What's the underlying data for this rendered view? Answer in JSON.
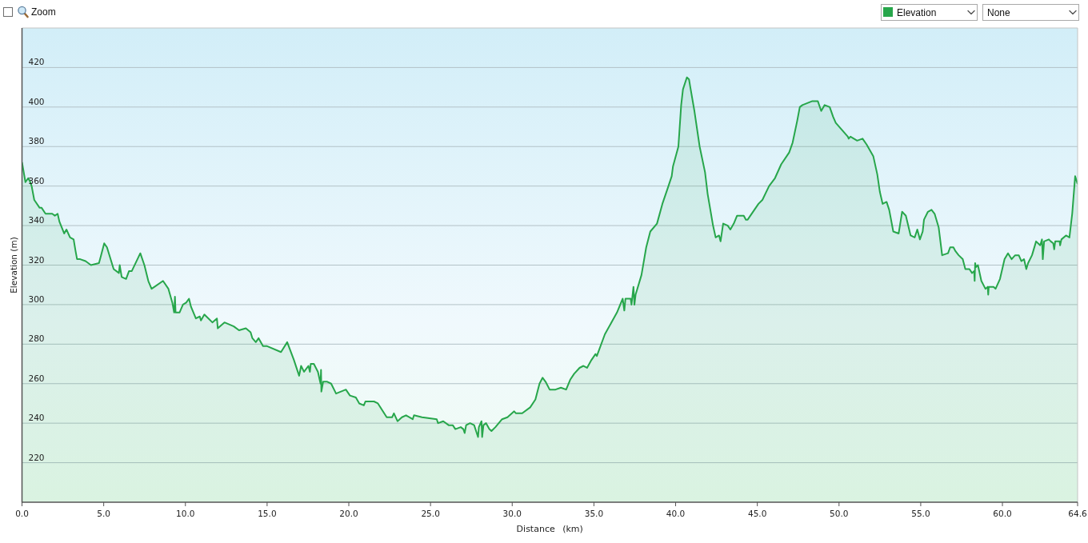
{
  "chart_data": {
    "type": "area",
    "xlabel": "Distance (km)",
    "ylabel": "Elevation (m)",
    "annotations": [
      "Zoom",
      "None"
    ],
    "x": [
      0,
      0.21,
      0.38,
      0.51,
      0.59,
      0.75,
      1.08,
      1.2,
      1.44,
      1.85,
      2.01,
      2.18,
      2.29,
      2.58,
      2.72,
      2.94,
      3.16,
      3.28,
      3.37,
      3.56,
      3.89,
      4.22,
      4.71,
      4.84,
      5.03,
      5.2,
      5.61,
      5.93,
      5.98,
      6.1,
      6.37,
      6.55,
      6.72,
      7.24,
      7.49,
      7.73,
      7.93,
      8.11,
      8.63,
      8.96,
      9.2,
      9.31,
      9.36,
      9.4,
      9.64,
      9.85,
      10.05,
      10.22,
      10.34,
      10.64,
      10.88,
      10.95,
      11.16,
      11.41,
      11.65,
      11.93,
      11.98,
      12.39,
      12.96,
      13.28,
      13.7,
      13.99,
      14.1,
      14.31,
      14.48,
      14.75,
      15,
      15.85,
      16.23,
      16.64,
      16.96,
      17.08,
      17.26,
      17.53,
      17.62,
      17.67,
      17.86,
      18.11,
      18.27,
      18.3,
      18.32,
      18.43,
      18.68,
      18.92,
      19.22,
      19.82,
      20.07,
      20.43,
      20.64,
      20.92,
      21.02,
      21.54,
      21.78,
      22.32,
      22.65,
      22.76,
      22.98,
      23.25,
      23.5,
      23.91,
      23.99,
      24.48,
      25.38,
      25.46,
      25.78,
      26.11,
      26.36,
      26.52,
      26.85,
      27.01,
      27.09,
      27.18,
      27.42,
      27.67,
      27.91,
      27.96,
      28.12,
      28.16,
      28.24,
      28.4,
      28.6,
      28.73,
      28.97,
      29.38,
      29.71,
      30.12,
      30.23,
      30.61,
      31.1,
      31.42,
      31.67,
      31.86,
      32.04,
      32.29,
      32.65,
      32.98,
      33.3,
      33.55,
      33.79,
      34.12,
      34.36,
      34.58,
      34.85,
      35.1,
      35.18,
      35.67,
      36.41,
      36.76,
      36.86,
      36.93,
      37.25,
      37.3,
      37.42,
      37.48,
      37.55,
      37.91,
      38.2,
      38.45,
      38.86,
      39.19,
      39.52,
      39.76,
      39.84,
      40.17,
      40.34,
      40.45,
      40.69,
      40.82,
      40.9,
      41.15,
      41.47,
      41.8,
      41.96,
      42.29,
      42.45,
      42.66,
      42.75,
      42.91,
      43.19,
      43.35,
      43.56,
      43.76,
      44.17,
      44.3,
      44.41,
      45.07,
      45.31,
      45.72,
      46.08,
      46.46,
      46.95,
      47.16,
      47.44,
      47.6,
      47.76,
      48.37,
      48.7,
      48.91,
      49.12,
      49.43,
      49.64,
      49.8,
      50.54,
      50.59,
      50.7,
      51.11,
      51.44,
      51.69,
      52.1,
      52.34,
      52.5,
      52.67,
      52.91,
      53.07,
      53.32,
      53.65,
      53.86,
      54.09,
      54.38,
      54.63,
      54.79,
      54.95,
      55.12,
      55.2,
      55.44,
      55.66,
      55.85,
      56.1,
      56.31,
      56.67,
      56.8,
      57,
      57.13,
      57.32,
      57.57,
      57.73,
      57.98,
      58.14,
      58.27,
      58.3,
      58.33,
      58.38,
      58.5,
      58.71,
      58.96,
      59.1,
      59.13,
      59.16,
      59.46,
      59.58,
      59.85,
      60.13,
      60.34,
      60.56,
      60.78,
      61,
      61.16,
      61.32,
      61.46,
      61.57,
      61.81,
      62.06,
      62.31,
      62.42,
      62.47,
      62.55,
      62.84,
      62.96,
      63.11,
      63.17,
      63.23,
      63.5,
      63.53,
      63.61,
      63.89,
      64.1,
      64.27,
      64.45,
      64.6
    ],
    "series": [
      {
        "name": "Elevation",
        "color": "#27a64b",
        "values": [
          372,
          362,
          364,
          362,
          360,
          353,
          349,
          349,
          346,
          346,
          345,
          346,
          342,
          336,
          338,
          334,
          333,
          327,
          323,
          323,
          322,
          320,
          321,
          325,
          331,
          329,
          318,
          316,
          320,
          314,
          313,
          317,
          317,
          326,
          320,
          312,
          308,
          309,
          312,
          308,
          301,
          296,
          304,
          296,
          296,
          300,
          301,
          303,
          299,
          293,
          294,
          292,
          295,
          293,
          291,
          293,
          288,
          291,
          289,
          287,
          288,
          286,
          283,
          281,
          283,
          279,
          279,
          276,
          281,
          272,
          264,
          269,
          266,
          269,
          266,
          270,
          270,
          266,
          260,
          267,
          256,
          261,
          261,
          260,
          255,
          257,
          254,
          253,
          250,
          249,
          251,
          251,
          250,
          243,
          243,
          245,
          241,
          243,
          244,
          242,
          244,
          243,
          242,
          240,
          241,
          239,
          239,
          237,
          238,
          237,
          235,
          239,
          240,
          239,
          233,
          238,
          241,
          233,
          239,
          240,
          237,
          236,
          238,
          242,
          243,
          246,
          245,
          245,
          248,
          252,
          260,
          263,
          261,
          257,
          257,
          258,
          257,
          262,
          265,
          268,
          269,
          268,
          272,
          275,
          274,
          285,
          296,
          303,
          297,
          303,
          303,
          300,
          309,
          300,
          305,
          315,
          329,
          337,
          341,
          351,
          359,
          365,
          370,
          380,
          401,
          409,
          415,
          414,
          410,
          398,
          380,
          367,
          356,
          340,
          334,
          335,
          332,
          341,
          340,
          338,
          341,
          345,
          345,
          343,
          343,
          351,
          353,
          360,
          364,
          371,
          377,
          382,
          393,
          400,
          401,
          403,
          403,
          398,
          401,
          400,
          395,
          392,
          385,
          384,
          385,
          383,
          384,
          381,
          375,
          366,
          357,
          351,
          352,
          348,
          337,
          336,
          347,
          345,
          335,
          334,
          338,
          333,
          337,
          343,
          347,
          348,
          346,
          339,
          325,
          326,
          329,
          329,
          327,
          325,
          323,
          318,
          318,
          316,
          317,
          312,
          321,
          319,
          320,
          312,
          308,
          309,
          305,
          309,
          309,
          308,
          313,
          323,
          326,
          323,
          325,
          325,
          322,
          323,
          318,
          321,
          325,
          332,
          330,
          333,
          323,
          332,
          333,
          332,
          331,
          328,
          332,
          332,
          330,
          333,
          335,
          334,
          346,
          365,
          361
        ]
      }
    ],
    "xlim": [
      0,
      64.6
    ],
    "ylim": [
      200,
      440
    ],
    "xticks": [
      {
        "value": 0,
        "label": "0.0"
      },
      {
        "value": 5,
        "label": "5.0"
      },
      {
        "value": 10,
        "label": "10.0"
      },
      {
        "value": 15,
        "label": "15.0"
      },
      {
        "value": 20,
        "label": "20.0"
      },
      {
        "value": 25,
        "label": "25.0"
      },
      {
        "value": 30,
        "label": "30.0"
      },
      {
        "value": 35,
        "label": "35.0"
      },
      {
        "value": 40,
        "label": "40.0"
      },
      {
        "value": 45,
        "label": "45.0"
      },
      {
        "value": 50,
        "label": "50.0"
      },
      {
        "value": 55,
        "label": "55.0"
      },
      {
        "value": 60,
        "label": "60.0"
      },
      64.6
    ],
    "yticks": [
      220,
      240,
      260,
      280,
      300,
      320,
      340,
      360,
      380,
      400,
      420
    ],
    "grid": "y",
    "legend": "top right"
  }
}
